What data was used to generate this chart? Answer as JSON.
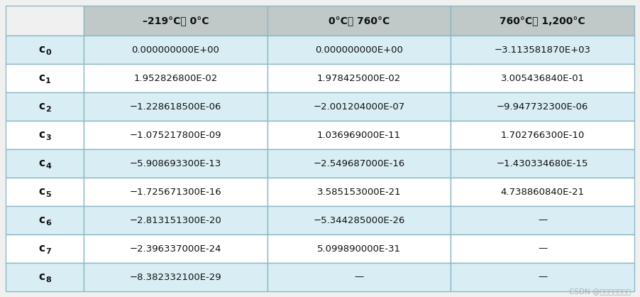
{
  "col_headers": [
    "–219°C至 0°C",
    "0°C至 760°C",
    "760°C至 1,200°C"
  ],
  "row_headers_sub": [
    "0",
    "1",
    "2",
    "3",
    "4",
    "5",
    "6",
    "7",
    "8"
  ],
  "data": [
    [
      "0.000000000E+00",
      "0.000000000E+00",
      "−3.113581870E+03"
    ],
    [
      "1.952826800E-02",
      "1.978425000E-02",
      "3.005436840E-01"
    ],
    [
      "−1.228618500E-06",
      "−2.001204000E-07",
      "−9.947732300E-06"
    ],
    [
      "−1.075217800E-09",
      "1.036969000E-11",
      "1.702766300E-10"
    ],
    [
      "−5.908693300E-13",
      "−2.549687000E-16",
      "−1.430334680E-15"
    ],
    [
      "−1.725671300E-16",
      "3.585153000E-21",
      "4.738860840E-21"
    ],
    [
      "−2.813151300E-20",
      "−5.344285000E-26",
      "—"
    ],
    [
      "−2.396337000E-24",
      "5.099890000E-31",
      "—"
    ],
    [
      "−8.382332100E-29",
      "—",
      "—"
    ]
  ],
  "header_bg": "#c0c8c8",
  "row_bg_even": "#d8eef4",
  "row_bg_odd": "#ffffff",
  "header_text_color": "#111111",
  "data_text_color": "#111111",
  "border_color": "#90b8c4",
  "left_col_bg_even": "#d8eef4",
  "left_col_bg_odd": "#ffffff",
  "watermark": "CSDN @不脱发的程序猳",
  "fig_bg": "#f0f0f0"
}
